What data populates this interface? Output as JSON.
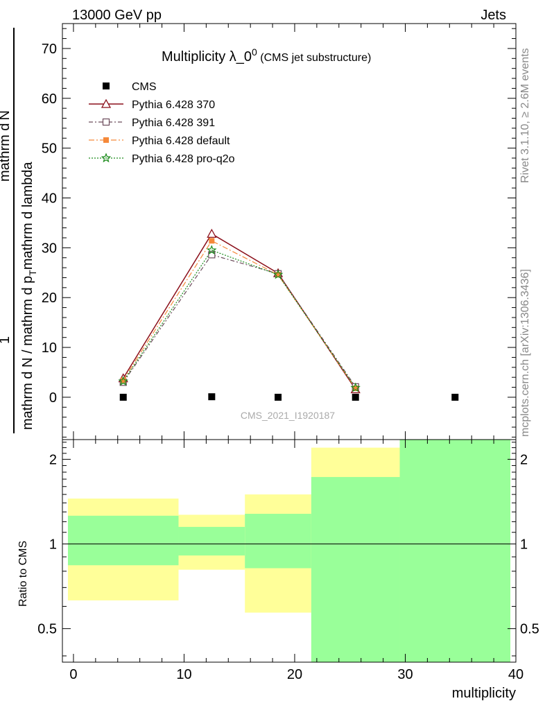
{
  "header": {
    "left": "13000 GeV pp",
    "right": "Jets"
  },
  "side": {
    "rivet": "Rivet 3.1.10, ≥ 2.6M events",
    "mcplots": "mcplots.cern.ch [arXiv:1306.3436]"
  },
  "title": {
    "main": "Multiplicity λ_0",
    "sup": "0",
    "sub": " (CMS jet substructure)"
  },
  "watermark": "CMS_2021_I1920187",
  "ylabel": {
    "left": "mathrm d N / mathrm d p",
    "sub": "T",
    "right": "mathrm d lambda",
    "fraction_num": "1",
    "fraction_top": "mathrm d",
    "fraction_top2": "N",
    "fraction_bottom": "mathrm d p",
    "fraction_bottom_sub": "T",
    "fraction_bottom2": "mathrm d lambda"
  },
  "ratio_ylabel": "Ratio to CMS",
  "xlabel": "multiplicity",
  "colors": {
    "cms": "#000000",
    "p370": "#8b0f1a",
    "p391": "#6b4a5a",
    "pdefault": "#f5893a",
    "pq2o": "#1a8a1a",
    "band_yellow": "#ffff99",
    "band_green": "#99ff99"
  },
  "chart_data": [
    {
      "type": "line",
      "title": "Multiplicity λ_0^0 (CMS jet substructure)",
      "xlim": [
        -1,
        40
      ],
      "ylim": [
        -8.5,
        75
      ],
      "yticks": [
        0,
        10,
        20,
        30,
        40,
        50,
        60,
        70
      ],
      "series": [
        {
          "name": "CMS",
          "style": "square",
          "x": [
            4.5,
            12.5,
            18.5,
            25.5,
            34.5
          ],
          "y": [
            0.0,
            0.1,
            0.0,
            0.0,
            0.0
          ]
        },
        {
          "name": "Pythia 6.428 370",
          "style": "triangle",
          "x": [
            4.5,
            12.5,
            18.5,
            25.5
          ],
          "y": [
            3.8,
            32.8,
            24.9,
            1.6
          ]
        },
        {
          "name": "Pythia 6.428 391",
          "style": "opensquare",
          "x": [
            4.5,
            12.5,
            18.5,
            25.5
          ],
          "y": [
            3.0,
            28.6,
            24.8,
            2.1
          ]
        },
        {
          "name": "Pythia 6.428 default",
          "style": "filledsquare",
          "x": [
            4.5,
            12.5,
            18.5,
            25.5
          ],
          "y": [
            3.4,
            31.4,
            24.6,
            1.8
          ]
        },
        {
          "name": "Pythia 6.428 pro-q2o",
          "style": "star",
          "x": [
            4.5,
            12.5,
            18.5,
            25.5
          ],
          "y": [
            3.2,
            29.5,
            24.6,
            1.9
          ]
        }
      ]
    },
    {
      "type": "area",
      "ylabel": "Ratio to CMS",
      "xlabel": "multiplicity",
      "xlim": [
        -1,
        40
      ],
      "ylim": [
        0.38,
        2.35
      ],
      "yscale": "log",
      "yticks": [
        0.5,
        1,
        2
      ],
      "xticks": [
        0,
        10,
        20,
        30,
        40
      ],
      "bands": [
        {
          "x0": -0.5,
          "x1": 9.5,
          "yellow": [
            0.63,
            1.45
          ],
          "green": [
            0.84,
            1.26
          ]
        },
        {
          "x0": 9.5,
          "x1": 15.5,
          "yellow": [
            0.81,
            1.27
          ],
          "green": [
            0.91,
            1.15
          ]
        },
        {
          "x0": 15.5,
          "x1": 21.5,
          "yellow": [
            0.57,
            1.5
          ],
          "green": [
            0.82,
            1.28
          ]
        },
        {
          "x0": 21.5,
          "x1": 29.5,
          "yellow": [
            0.38,
            2.2
          ],
          "green": [
            0.38,
            1.73
          ]
        },
        {
          "x0": 29.5,
          "x1": 39.5,
          "yellow": [
            0.38,
            2.35
          ],
          "green": [
            0.38,
            2.35
          ]
        }
      ]
    }
  ]
}
